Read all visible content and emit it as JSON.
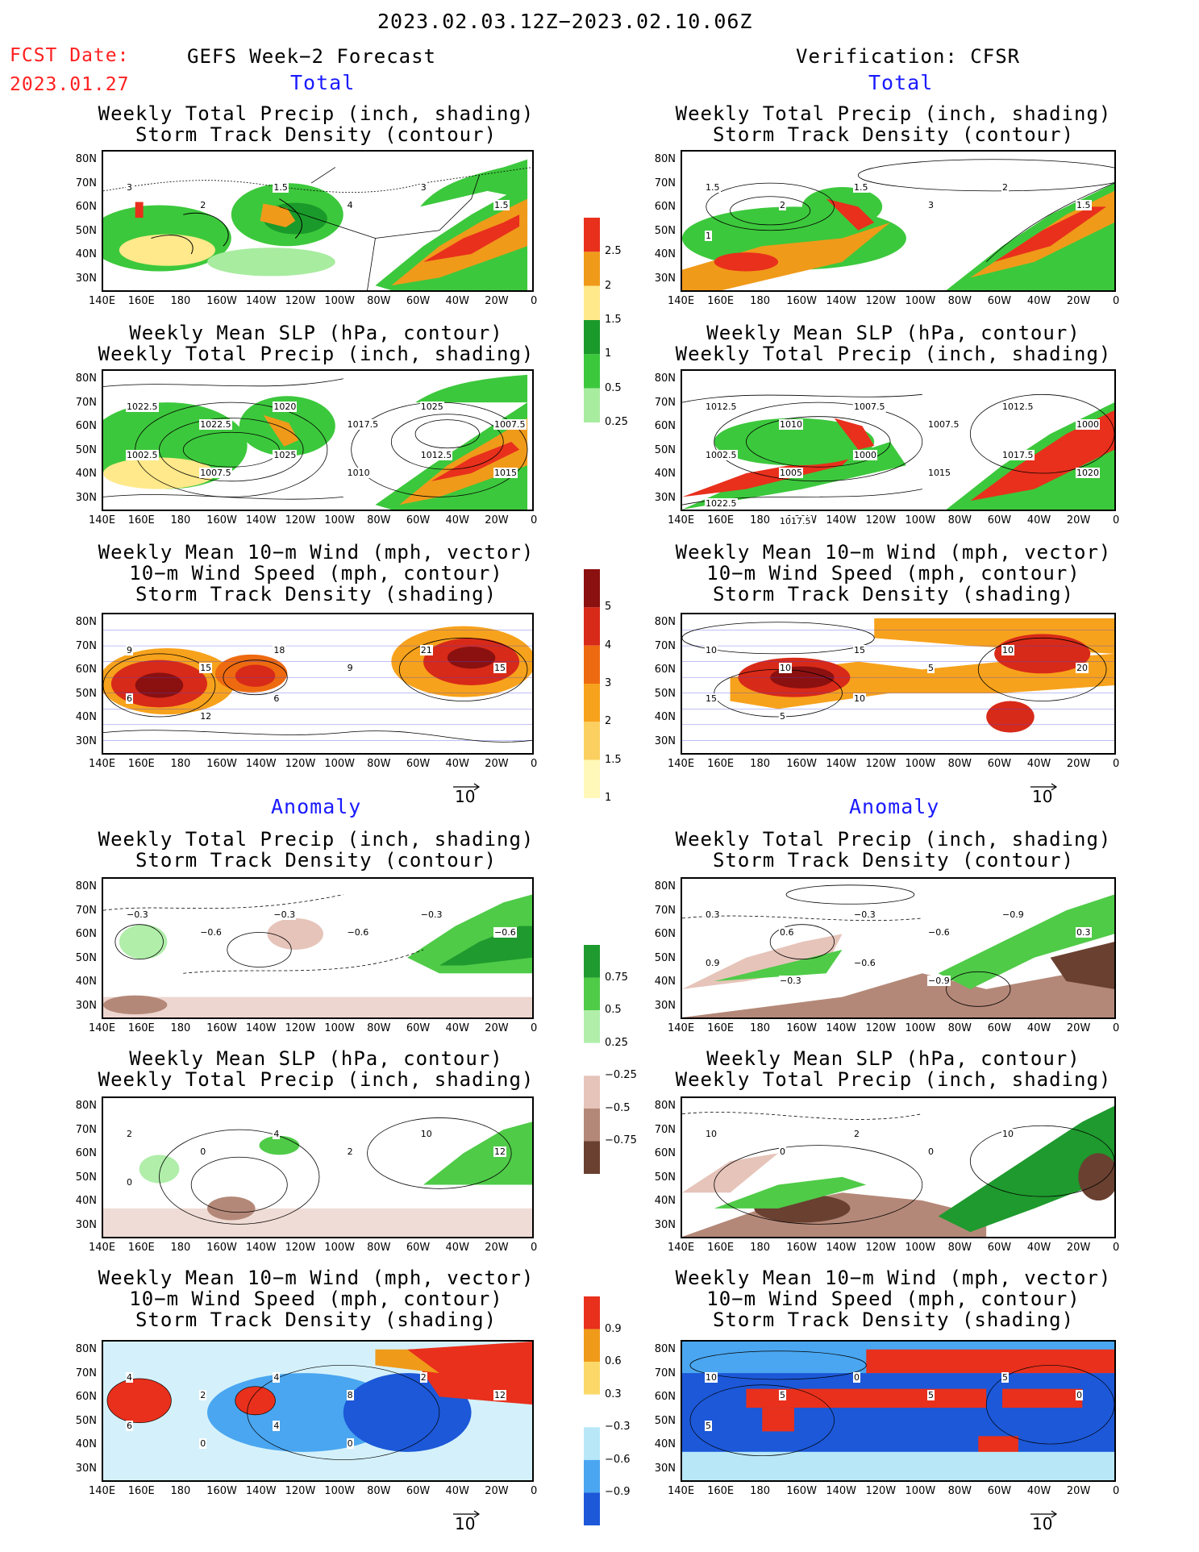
{
  "header": {
    "date_range": "2023.02.03.12Z−2023.02.10.06Z",
    "fcst_label": "FCST Date:",
    "fcst_date": "2023.01.27",
    "left_title": "GEFS Week−2 Forecast",
    "right_title": "Verification: CFSR"
  },
  "sections": {
    "total": "Total",
    "anomaly": "Anomaly"
  },
  "panels": {
    "precip_storm": [
      "Weekly Total Precip (inch, shading)",
      "Storm Track Density (contour)"
    ],
    "slp_precip": [
      "Weekly Mean SLP (hPa, contour)",
      "Weekly Total Precip (inch, shading)"
    ],
    "wind_storm": [
      "Weekly Mean 10−m Wind (mph, vector)",
      "10−m Wind Speed (mph, contour)",
      "Storm Track Density (shading)"
    ]
  },
  "axes": {
    "lat": [
      "80N",
      "70N",
      "60N",
      "50N",
      "40N",
      "30N"
    ],
    "lon": [
      "140E",
      "160E",
      "180",
      "160W",
      "140W",
      "120W",
      "100W",
      "80W",
      "60W",
      "40W",
      "20W",
      "0"
    ]
  },
  "vector_ref": "10",
  "colorbars": {
    "precip_total": {
      "labels": [
        "2.5",
        "2",
        "1.5",
        "1",
        "0.5",
        "0.25"
      ],
      "colors": [
        "#e8301c",
        "#f09a1a",
        "#ffe98a",
        "#1a9a2a",
        "#3cc83c",
        "#a8eca0"
      ]
    },
    "storm_total": {
      "labels": [
        "5",
        "4",
        "3",
        "2",
        "1.5",
        "1"
      ],
      "colors": [
        "#8b1010",
        "#d82a18",
        "#ee6a10",
        "#f7a21c",
        "#fcd060",
        "#fff8b8"
      ]
    },
    "precip_anom": {
      "labels": [
        "0.75",
        "0.5",
        "0.25",
        "−0.25",
        "−0.5",
        "−0.75"
      ],
      "colors": [
        "#1f9a2e",
        "#4fcb48",
        "#b0eeaa",
        "#ffffff",
        "#e6c4ba",
        "#b48878",
        "#6a4030"
      ]
    },
    "storm_anom": {
      "labels": [
        "0.9",
        "0.6",
        "0.3",
        "−0.3",
        "−0.6",
        "−0.9"
      ],
      "colors": [
        "#e8301c",
        "#f09a1a",
        "#fcd868",
        "#ffffff",
        "#b8e8f8",
        "#4aa6f0",
        "#1c58d8"
      ]
    }
  },
  "contour_labels": {
    "l_precip_total": [
      "3",
      "2",
      "1.5",
      "4",
      "3",
      "1.5"
    ],
    "r_precip_total": [
      "1.5",
      "2",
      "1.5",
      "3",
      "2",
      "1.5",
      "1"
    ],
    "l_slp_total": [
      "1022.5",
      "1022.5",
      "1020",
      "1017.5",
      "1025",
      "1007.5",
      "1002.5",
      "1007.5",
      "1025",
      "1010",
      "1012.5",
      "1015"
    ],
    "r_slp_total": [
      "1012.5",
      "1010",
      "1007.5",
      "1007.5",
      "1012.5",
      "1000",
      "1002.5",
      "1005",
      "1000",
      "1015",
      "1017.5",
      "1020",
      "1022.5",
      "1017.5"
    ],
    "l_wind_total": [
      "9",
      "15",
      "18",
      "9",
      "21",
      "15",
      "6",
      "12",
      "6"
    ],
    "r_wind_total": [
      "10",
      "10",
      "15",
      "5",
      "10",
      "20",
      "15",
      "5",
      "10"
    ],
    "l_precip_anom": [
      "−0.3",
      "−0.6",
      "−0.3",
      "−0.6",
      "−0.3",
      "−0.6"
    ],
    "r_precip_anom": [
      "0.3",
      "0.6",
      "−0.3",
      "−0.6",
      "−0.9",
      "0.3",
      "0.9",
      "−0.3",
      "−0.6",
      "−0.9"
    ],
    "l_slp_anom": [
      "2",
      "0",
      "4",
      "2",
      "10",
      "12",
      "0"
    ],
    "r_slp_anom": [
      "10",
      "0",
      "2",
      "0",
      "10"
    ],
    "l_wind_anom": [
      "4",
      "2",
      "4",
      "8",
      "2",
      "12",
      "6",
      "0",
      "4",
      "0"
    ],
    "r_wind_anom": [
      "10",
      "5",
      "0",
      "5",
      "5",
      "0",
      "5"
    ]
  }
}
